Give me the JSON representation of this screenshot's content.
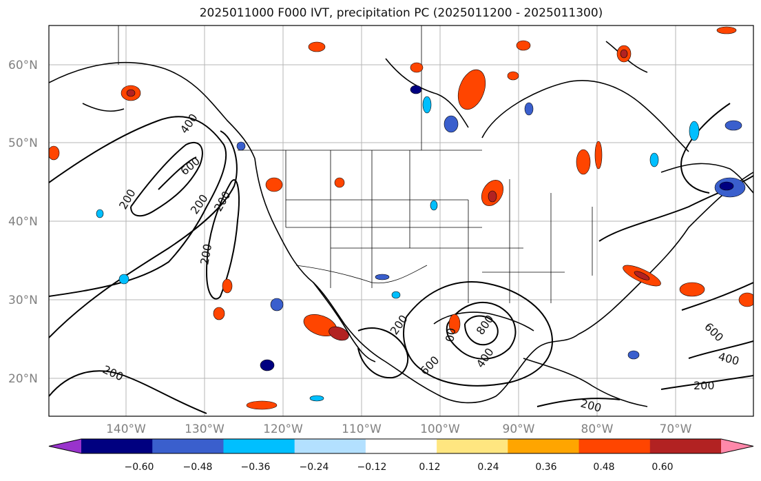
{
  "title": "2025011000 F000 IVT, precipitation PC (2025011200 - 2025011300)",
  "map": {
    "lat_labels": [
      "60°N",
      "50°N",
      "40°N",
      "30°N",
      "20°N"
    ],
    "lon_labels": [
      "140°W",
      "130°W",
      "120°W",
      "110°W",
      "100°W",
      "90°W",
      "80°W",
      "70°W"
    ],
    "ivt_contour_labels": [
      "400",
      "600",
      "200",
      "200",
      "200",
      "200",
      "200",
      "200",
      "00",
      "800",
      "400",
      "600",
      "600",
      "400",
      "200",
      "200"
    ]
  },
  "colorbar": {
    "tick_labels": [
      "−0.60",
      "−0.48",
      "−0.36",
      "−0.24",
      "−0.12",
      "0.12",
      "0.24",
      "0.36",
      "0.48",
      "0.60"
    ],
    "colors": [
      "#9933cc",
      "#000080",
      "#3a5fcd",
      "#00bfff",
      "#b3e0ff",
      "#ffffff",
      "#ffe680",
      "#ffa500",
      "#ff4500",
      "#b22222",
      "#ff88aa"
    ]
  }
}
